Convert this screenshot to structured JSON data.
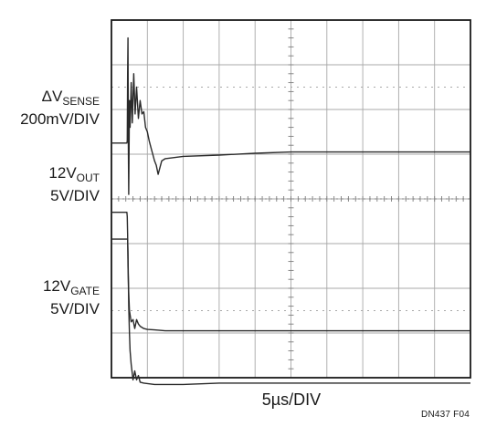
{
  "chart_data": {
    "type": "line",
    "labels": {
      "vsense_prefix": "ΔV",
      "vsense_sub": "SENSE",
      "vsense_scale": "200mV/DIV",
      "out_prefix": "12V",
      "out_sub": "OUT",
      "out_scale": "5V/DIV",
      "gate_prefix": "12V",
      "gate_sub": "GATE",
      "gate_scale": "5V/DIV"
    },
    "xlabel": "5µs/DIV",
    "figure_id": "DN437 F04",
    "x_divisions": 10,
    "y_divisions": 8,
    "grid": true,
    "series": [
      {
        "key": "vsense",
        "x": [
          0,
          0.42,
          0.43,
          0.44,
          0.45,
          0.46,
          0.47,
          0.48,
          0.5,
          0.52,
          0.55,
          0.58,
          0.62,
          0.66,
          0.7,
          0.75,
          0.8,
          0.85,
          0.9,
          0.95,
          1.0,
          1.05,
          1.1,
          1.15,
          1.2,
          1.25,
          1.3,
          1.4,
          1.5,
          2.0,
          3.0,
          4.0,
          5.0,
          6.0,
          7.0,
          8.0,
          9.0,
          10.0
        ],
        "y": [
          5.25,
          5.25,
          5.25,
          5.3,
          6.8,
          7.6,
          5.2,
          4.1,
          6.2,
          5.6,
          6.6,
          5.7,
          6.8,
          5.9,
          6.5,
          5.8,
          6.2,
          5.9,
          5.95,
          5.6,
          5.5,
          5.3,
          5.15,
          5.0,
          4.85,
          4.75,
          4.55,
          4.85,
          4.9,
          4.95,
          4.98,
          5.02,
          5.05,
          5.05,
          5.05,
          5.05,
          5.05,
          5.05
        ]
      },
      {
        "key": "out",
        "x": [
          0,
          0.43,
          0.44,
          0.45,
          0.46,
          0.48,
          0.5,
          0.55,
          0.6,
          0.65,
          0.7,
          0.75,
          0.8,
          0.9,
          1.0,
          1.2,
          1.5,
          2.0,
          3.0,
          4.0,
          5.0,
          6.0,
          7.0,
          8.0,
          9.0,
          10.0
        ],
        "y": [
          3.7,
          3.7,
          3.6,
          3.2,
          2.5,
          1.9,
          1.5,
          1.25,
          1.3,
          1.1,
          1.3,
          1.2,
          1.15,
          1.1,
          1.08,
          1.07,
          1.05,
          1.05,
          1.05,
          1.05,
          1.05,
          1.05,
          1.05,
          1.05,
          1.05,
          1.05
        ]
      },
      {
        "key": "gate",
        "x": [
          0,
          0.45,
          0.46,
          0.47,
          0.48,
          0.5,
          0.52,
          0.55,
          0.6,
          0.65,
          0.7,
          0.75,
          0.8,
          0.9,
          1.0,
          1.2,
          1.5,
          2.0,
          3.0,
          4.0,
          5.0,
          6.0,
          7.0,
          8.0,
          9.0,
          10.0
        ],
        "y": [
          3.1,
          3.1,
          2.8,
          2.2,
          1.6,
          1.0,
          0.6,
          0.3,
          -0.05,
          0.15,
          -0.05,
          0.05,
          -0.1,
          -0.12,
          -0.13,
          -0.15,
          -0.15,
          -0.15,
          -0.12,
          -0.12,
          -0.12,
          -0.12,
          -0.12,
          -0.12,
          -0.12,
          -0.12
        ]
      }
    ]
  }
}
